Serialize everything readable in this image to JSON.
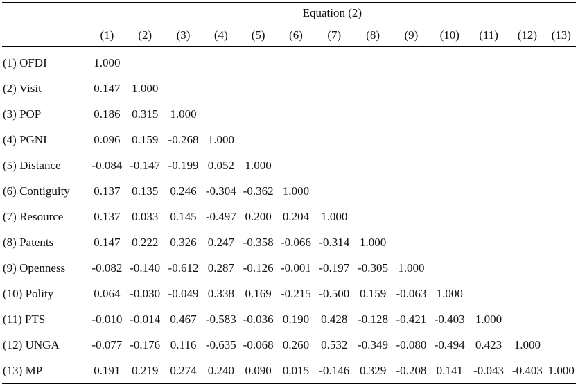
{
  "table": {
    "group_header": "Equation (2)",
    "column_numbers": [
      "(1)",
      "(2)",
      "(3)",
      "(4)",
      "(5)",
      "(6)",
      "(7)",
      "(8)",
      "(9)",
      "(10)",
      "(11)",
      "(12)",
      "(13)"
    ],
    "rows": [
      {
        "label": "(1) OFDI",
        "values": [
          "1.000"
        ]
      },
      {
        "label": "(2) Visit",
        "values": [
          "0.147",
          "1.000"
        ]
      },
      {
        "label": "(3) POP",
        "values": [
          "0.186",
          "0.315",
          "1.000"
        ]
      },
      {
        "label": "(4) PGNI",
        "values": [
          "0.096",
          "0.159",
          "-0.268",
          "1.000"
        ]
      },
      {
        "label": "(5) Distance",
        "values": [
          "-0.084",
          "-0.147",
          "-0.199",
          "0.052",
          "1.000"
        ]
      },
      {
        "label": "(6) Contiguity",
        "values": [
          "0.137",
          "0.135",
          "0.246",
          "-0.304",
          "-0.362",
          "1.000"
        ]
      },
      {
        "label": "(7) Resource",
        "values": [
          "0.137",
          "0.033",
          "0.145",
          "-0.497",
          "0.200",
          "0.204",
          "1.000"
        ]
      },
      {
        "label": "(8) Patents",
        "values": [
          "0.147",
          "0.222",
          "0.326",
          "0.247",
          "-0.358",
          "-0.066",
          "-0.314",
          "1.000"
        ]
      },
      {
        "label": "(9) Openness",
        "values": [
          "-0.082",
          "-0.140",
          "-0.612",
          "0.287",
          "-0.126",
          "-0.001",
          "-0.197",
          "-0.305",
          "1.000"
        ]
      },
      {
        "label": "(10) Polity",
        "values": [
          "0.064",
          "-0.030",
          "-0.049",
          "0.338",
          "0.169",
          "-0.215",
          "-0.500",
          "0.159",
          "-0.063",
          "1.000"
        ]
      },
      {
        "label": "(11) PTS",
        "values": [
          "-0.010",
          "-0.014",
          "0.467",
          "-0.583",
          "-0.036",
          "0.190",
          "0.428",
          "-0.128",
          "-0.421",
          "-0.403",
          "1.000"
        ]
      },
      {
        "label": "(12) UNGA",
        "values": [
          "-0.077",
          "-0.176",
          "0.116",
          "-0.635",
          "-0.068",
          "0.260",
          "0.532",
          "-0.349",
          "-0.080",
          "-0.494",
          "0.423",
          "1.000"
        ]
      },
      {
        "label": "(13) MP",
        "values": [
          "0.191",
          "0.219",
          "0.274",
          "0.240",
          "0.090",
          "0.015",
          "-0.146",
          "0.329",
          "-0.208",
          "0.141",
          "-0.043",
          "-0.403",
          "1.000"
        ]
      }
    ]
  }
}
